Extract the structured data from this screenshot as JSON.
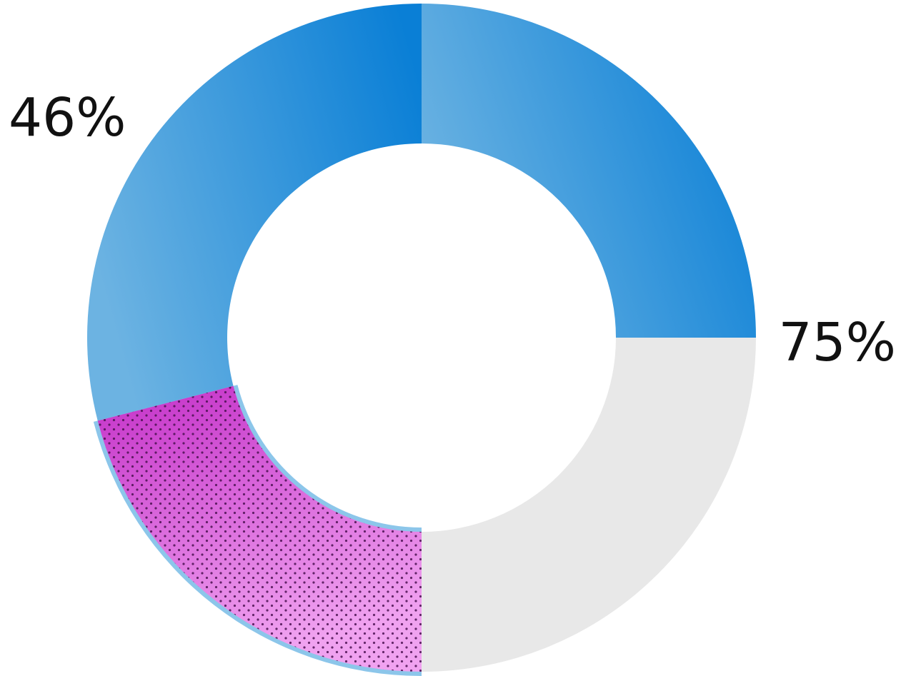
{
  "chart_data": {
    "type": "pie",
    "variant": "donut",
    "title": "",
    "start_angle_deg": 0,
    "direction": "clockwise",
    "slices": [
      {
        "value": 25,
        "color": "#e8e8e8"
      },
      {
        "value": 21,
        "color": "#d45ad8",
        "pattern": "dots",
        "outline": "#8cc6ea"
      },
      {
        "value": 29,
        "color": "#1a87d9",
        "gradient_start": "#6cb3e2"
      },
      {
        "value": 25,
        "color": "#1a87d9"
      }
    ],
    "labels": [
      {
        "text": "46%",
        "at_percent": 46,
        "position": "top-left"
      },
      {
        "text": "75%",
        "at_percent": 75,
        "position": "right"
      }
    ]
  }
}
